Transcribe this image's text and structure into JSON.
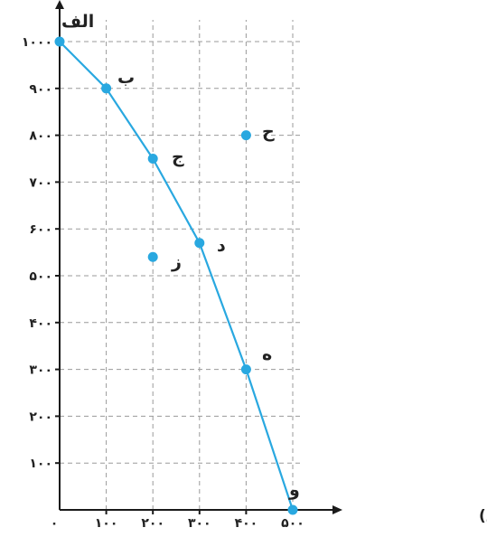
{
  "chart_data": {
    "type": "line",
    "title": "",
    "xlabel": "مقدار کره (تُن)",
    "ylabel": "",
    "xlim": [
      0,
      500
    ],
    "ylim": [
      0,
      1000
    ],
    "x_ticks": [
      100,
      200,
      300,
      400,
      500
    ],
    "x_tick_labels": [
      "۱۰۰",
      "۲۰۰",
      "۳۰۰",
      "۴۰۰",
      "۵۰۰"
    ],
    "y_ticks": [
      100,
      200,
      300,
      400,
      500,
      600,
      700,
      800,
      900,
      1000
    ],
    "y_tick_labels": [
      "۱۰۰",
      "۲۰۰",
      "۳۰۰",
      "۴۰۰",
      "۵۰۰",
      "۶۰۰",
      "۷۰۰",
      "۸۰۰",
      "۹۰۰",
      "۱۰۰۰"
    ],
    "origin_label": "۰",
    "grid": true,
    "line_color": "#29a8e0",
    "series": [
      {
        "points": [
          {
            "label": "الف",
            "x": 0,
            "y": 1000
          },
          {
            "label": "ب",
            "x": 100,
            "y": 900
          },
          {
            "label": "ج",
            "x": 200,
            "y": 750
          },
          {
            "label": "د",
            "x": 300,
            "y": 570
          },
          {
            "label": "ه",
            "x": 400,
            "y": 300
          },
          {
            "label": "و",
            "x": 500,
            "y": 0
          }
        ]
      }
    ],
    "extra_points": [
      {
        "label": "ز",
        "x": 200,
        "y": 540
      },
      {
        "label": "ح",
        "x": 400,
        "y": 800
      }
    ]
  }
}
